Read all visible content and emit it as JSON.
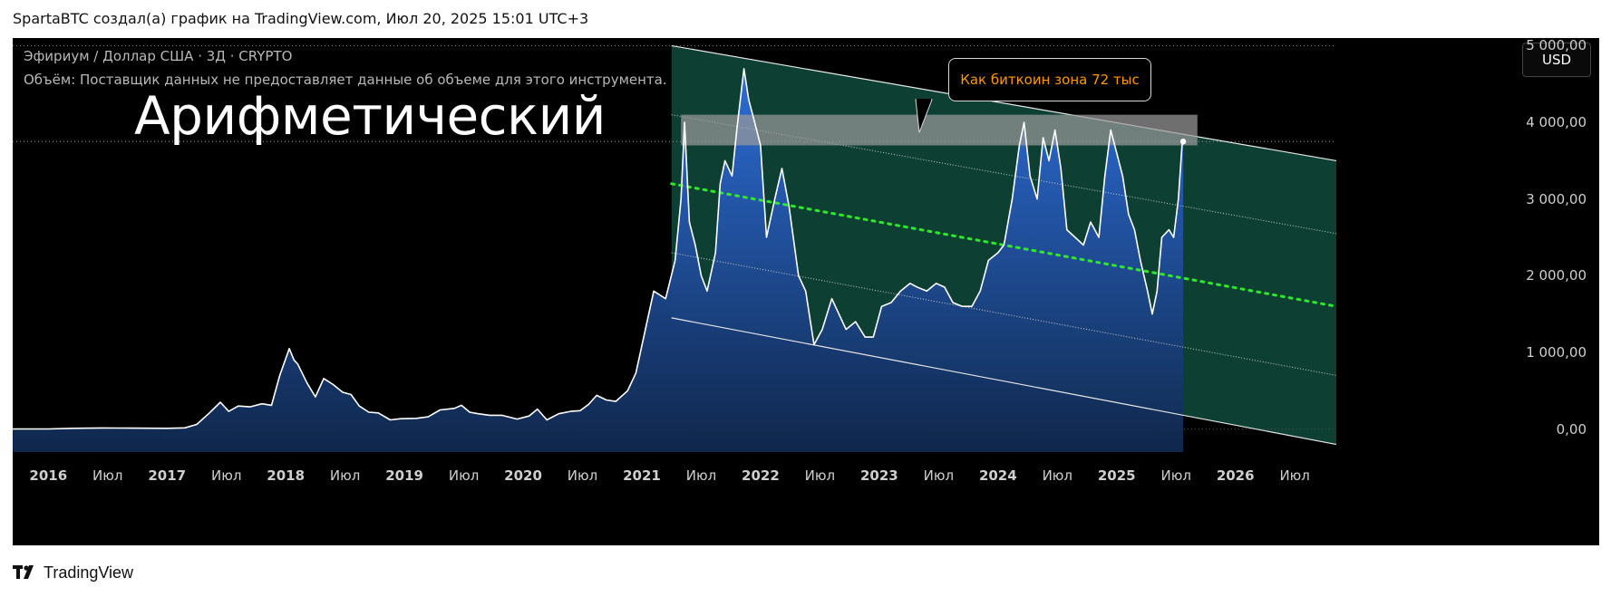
{
  "header": {
    "caption": "SpartaBTC создал(а) график на TradingView.com, Июл 20, 2025 15:01 UTC+3"
  },
  "legend": {
    "symbol": "Эфириум / Доллар США · 3Д · CRYPTO",
    "volume_note": "Объём: Поставщик данных не предоставляет данные об объеме для этого инструмента."
  },
  "overlay": {
    "big_title": "Арифметический",
    "callout_text": "Как биткоин зона 72 тыс"
  },
  "toolbar": {
    "currency": "USD"
  },
  "footer": {
    "brand": "TradingView"
  },
  "colors": {
    "background": "#000000",
    "price_line": "#ffffff",
    "area_top": "#2f6fe0",
    "area_bottom": "#0f2f5e",
    "channel_fill": "#0f4a3c",
    "midline": "#2ee82e",
    "zone_fill": "#9a9a9a",
    "callout_text": "#ff9800"
  },
  "chart_data": {
    "type": "area",
    "title": "Эфириум / Доллар США · 3Д · CRYPTO",
    "ylabel": "USD",
    "scale": "arithmetic",
    "ylim": [
      -300,
      5100
    ],
    "y_ticks": [
      "0,00",
      "1 000,00",
      "2 000,00",
      "3 000,00",
      "4 000,00",
      "5 000,00"
    ],
    "y_tick_values": [
      0,
      1000,
      2000,
      3000,
      4000,
      5000
    ],
    "x_labels": [
      {
        "label": "2016",
        "t": 2016.0,
        "bold": true
      },
      {
        "label": "Июл",
        "t": 2016.5,
        "bold": false
      },
      {
        "label": "2017",
        "t": 2017.0,
        "bold": true
      },
      {
        "label": "Июл",
        "t": 2017.5,
        "bold": false
      },
      {
        "label": "2018",
        "t": 2018.0,
        "bold": true
      },
      {
        "label": "Июл",
        "t": 2018.5,
        "bold": false
      },
      {
        "label": "2019",
        "t": 2019.0,
        "bold": true
      },
      {
        "label": "Июл",
        "t": 2019.5,
        "bold": false
      },
      {
        "label": "2020",
        "t": 2020.0,
        "bold": true
      },
      {
        "label": "Июл",
        "t": 2020.5,
        "bold": false
      },
      {
        "label": "2021",
        "t": 2021.0,
        "bold": true
      },
      {
        "label": "Июл",
        "t": 2021.5,
        "bold": false
      },
      {
        "label": "2022",
        "t": 2022.0,
        "bold": true
      },
      {
        "label": "Июл",
        "t": 2022.5,
        "bold": false
      },
      {
        "label": "2023",
        "t": 2023.0,
        "bold": true
      },
      {
        "label": "Июл",
        "t": 2023.5,
        "bold": false
      },
      {
        "label": "2024",
        "t": 2024.0,
        "bold": true
      },
      {
        "label": "Июл",
        "t": 2024.5,
        "bold": false
      },
      {
        "label": "2025",
        "t": 2025.0,
        "bold": true
      },
      {
        "label": "Июл",
        "t": 2025.5,
        "bold": false
      },
      {
        "label": "2026",
        "t": 2026.0,
        "bold": true
      },
      {
        "label": "Июл",
        "t": 2026.5,
        "bold": false
      }
    ],
    "xlim": [
      2015.7,
      2026.85
    ],
    "series": [
      {
        "name": "ETH/USD",
        "points": [
          [
            2015.7,
            1
          ],
          [
            2016.0,
            1
          ],
          [
            2016.2,
            10
          ],
          [
            2016.45,
            14
          ],
          [
            2016.7,
            12
          ],
          [
            2017.0,
            9
          ],
          [
            2017.15,
            15
          ],
          [
            2017.25,
            60
          ],
          [
            2017.35,
            200
          ],
          [
            2017.45,
            350
          ],
          [
            2017.52,
            230
          ],
          [
            2017.6,
            300
          ],
          [
            2017.7,
            290
          ],
          [
            2017.8,
            330
          ],
          [
            2017.88,
            310
          ],
          [
            2017.95,
            700
          ],
          [
            2018.03,
            1050
          ],
          [
            2018.07,
            900
          ],
          [
            2018.1,
            850
          ],
          [
            2018.18,
            600
          ],
          [
            2018.25,
            420
          ],
          [
            2018.32,
            660
          ],
          [
            2018.4,
            580
          ],
          [
            2018.48,
            480
          ],
          [
            2018.55,
            450
          ],
          [
            2018.62,
            300
          ],
          [
            2018.7,
            220
          ],
          [
            2018.78,
            210
          ],
          [
            2018.88,
            120
          ],
          [
            2018.97,
            135
          ],
          [
            2019.1,
            140
          ],
          [
            2019.2,
            160
          ],
          [
            2019.3,
            250
          ],
          [
            2019.42,
            270
          ],
          [
            2019.48,
            310
          ],
          [
            2019.55,
            220
          ],
          [
            2019.62,
            200
          ],
          [
            2019.72,
            180
          ],
          [
            2019.82,
            180
          ],
          [
            2019.95,
            130
          ],
          [
            2020.05,
            170
          ],
          [
            2020.12,
            260
          ],
          [
            2020.2,
            120
          ],
          [
            2020.3,
            200
          ],
          [
            2020.4,
            230
          ],
          [
            2020.48,
            240
          ],
          [
            2020.55,
            320
          ],
          [
            2020.62,
            440
          ],
          [
            2020.7,
            380
          ],
          [
            2020.78,
            360
          ],
          [
            2020.88,
            500
          ],
          [
            2020.95,
            730
          ],
          [
            2021.03,
            1300
          ],
          [
            2021.1,
            1800
          ],
          [
            2021.2,
            1700
          ],
          [
            2021.28,
            2200
          ],
          [
            2021.33,
            3000
          ],
          [
            2021.36,
            4000
          ],
          [
            2021.4,
            2700
          ],
          [
            2021.45,
            2400
          ],
          [
            2021.5,
            2000
          ],
          [
            2021.55,
            1800
          ],
          [
            2021.62,
            2300
          ],
          [
            2021.66,
            3200
          ],
          [
            2021.7,
            3500
          ],
          [
            2021.76,
            3300
          ],
          [
            2021.8,
            3900
          ],
          [
            2021.86,
            4700
          ],
          [
            2021.9,
            4300
          ],
          [
            2021.95,
            4000
          ],
          [
            2022.0,
            3700
          ],
          [
            2022.05,
            2500
          ],
          [
            2022.12,
            3000
          ],
          [
            2022.18,
            3400
          ],
          [
            2022.24,
            2900
          ],
          [
            2022.32,
            2000
          ],
          [
            2022.38,
            1800
          ],
          [
            2022.45,
            1100
          ],
          [
            2022.52,
            1300
          ],
          [
            2022.6,
            1700
          ],
          [
            2022.66,
            1500
          ],
          [
            2022.72,
            1300
          ],
          [
            2022.8,
            1400
          ],
          [
            2022.88,
            1200
          ],
          [
            2022.95,
            1200
          ],
          [
            2023.02,
            1600
          ],
          [
            2023.1,
            1650
          ],
          [
            2023.18,
            1800
          ],
          [
            2023.26,
            1900
          ],
          [
            2023.32,
            1850
          ],
          [
            2023.4,
            1800
          ],
          [
            2023.48,
            1900
          ],
          [
            2023.55,
            1850
          ],
          [
            2023.62,
            1650
          ],
          [
            2023.7,
            1600
          ],
          [
            2023.78,
            1600
          ],
          [
            2023.85,
            1800
          ],
          [
            2023.92,
            2200
          ],
          [
            2024.0,
            2300
          ],
          [
            2024.05,
            2400
          ],
          [
            2024.12,
            3000
          ],
          [
            2024.18,
            3700
          ],
          [
            2024.22,
            4000
          ],
          [
            2024.27,
            3300
          ],
          [
            2024.33,
            3000
          ],
          [
            2024.38,
            3800
          ],
          [
            2024.43,
            3500
          ],
          [
            2024.48,
            3900
          ],
          [
            2024.53,
            3400
          ],
          [
            2024.58,
            2600
          ],
          [
            2024.65,
            2500
          ],
          [
            2024.72,
            2400
          ],
          [
            2024.78,
            2700
          ],
          [
            2024.85,
            2500
          ],
          [
            2024.9,
            3300
          ],
          [
            2024.95,
            3900
          ],
          [
            2025.0,
            3600
          ],
          [
            2025.05,
            3300
          ],
          [
            2025.1,
            2800
          ],
          [
            2025.15,
            2600
          ],
          [
            2025.2,
            2200
          ],
          [
            2025.26,
            1800
          ],
          [
            2025.3,
            1500
          ],
          [
            2025.34,
            1800
          ],
          [
            2025.38,
            2500
          ],
          [
            2025.44,
            2600
          ],
          [
            2025.48,
            2500
          ],
          [
            2025.52,
            3000
          ],
          [
            2025.55,
            3700
          ],
          [
            2025.56,
            3750
          ]
        ]
      }
    ],
    "last_value": 3750,
    "channel": {
      "t_start": 2021.25,
      "t_end": 2026.85,
      "upper": [
        5000,
        3500
      ],
      "mid": [
        3200,
        1600
      ],
      "lower": [
        1450,
        -200
      ],
      "inner_upper": [
        4100,
        2550
      ],
      "inner_lower": [
        2300,
        700
      ]
    },
    "resistance_zone": {
      "t_start": 2021.33,
      "t_end": 2025.68,
      "low": 3700,
      "high": 4100
    },
    "horizontal_level": 3750
  }
}
